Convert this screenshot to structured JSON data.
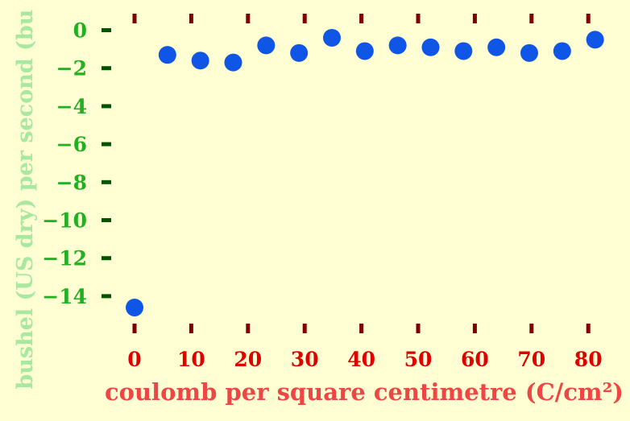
{
  "chart_data": {
    "type": "scatter",
    "title": "",
    "xlabel": "coulomb per square centimetre (C/cm²)",
    "ylabel": "bushel (US dry) per second (bu (US",
    "xlim": [
      0,
      80
    ],
    "ylim": [
      -15,
      0
    ],
    "grid": false,
    "x_ticks": [
      0,
      10,
      20,
      30,
      40,
      50,
      60,
      70,
      80
    ],
    "y_ticks": [
      0,
      -2,
      -4,
      -6,
      -8,
      -10,
      -12,
      -14
    ],
    "x_tick_labels": [
      "0",
      "10",
      "20",
      "30",
      "40",
      "50",
      "60",
      "70",
      "80"
    ],
    "y_tick_labels": [
      "0",
      "−2",
      "−4",
      "−6",
      "−8",
      "−10",
      "−12",
      "−14"
    ],
    "series": [
      {
        "x": [
          0,
          5.8,
          11.6,
          17.4,
          23.2,
          29,
          34.8,
          40.6,
          46.4,
          52.2,
          58,
          63.8,
          69.6,
          75.4,
          81.2
        ],
        "y": [
          -14.6,
          -1.3,
          -1.6,
          -1.7,
          -0.8,
          -1.2,
          -0.4,
          -1.1,
          -0.8,
          -0.9,
          -1.1,
          -0.9,
          -1.2,
          -1.1,
          -0.5
        ]
      }
    ],
    "colors": {
      "background": "#ffffd3",
      "points": "#0f55e6",
      "x_ticks": "#800000",
      "x_tick_labels": "#e00000",
      "x_label": "#f04545",
      "y_ticks": "#005500",
      "y_tick_labels": "#22b022",
      "y_label": "#a8e8a0"
    }
  }
}
